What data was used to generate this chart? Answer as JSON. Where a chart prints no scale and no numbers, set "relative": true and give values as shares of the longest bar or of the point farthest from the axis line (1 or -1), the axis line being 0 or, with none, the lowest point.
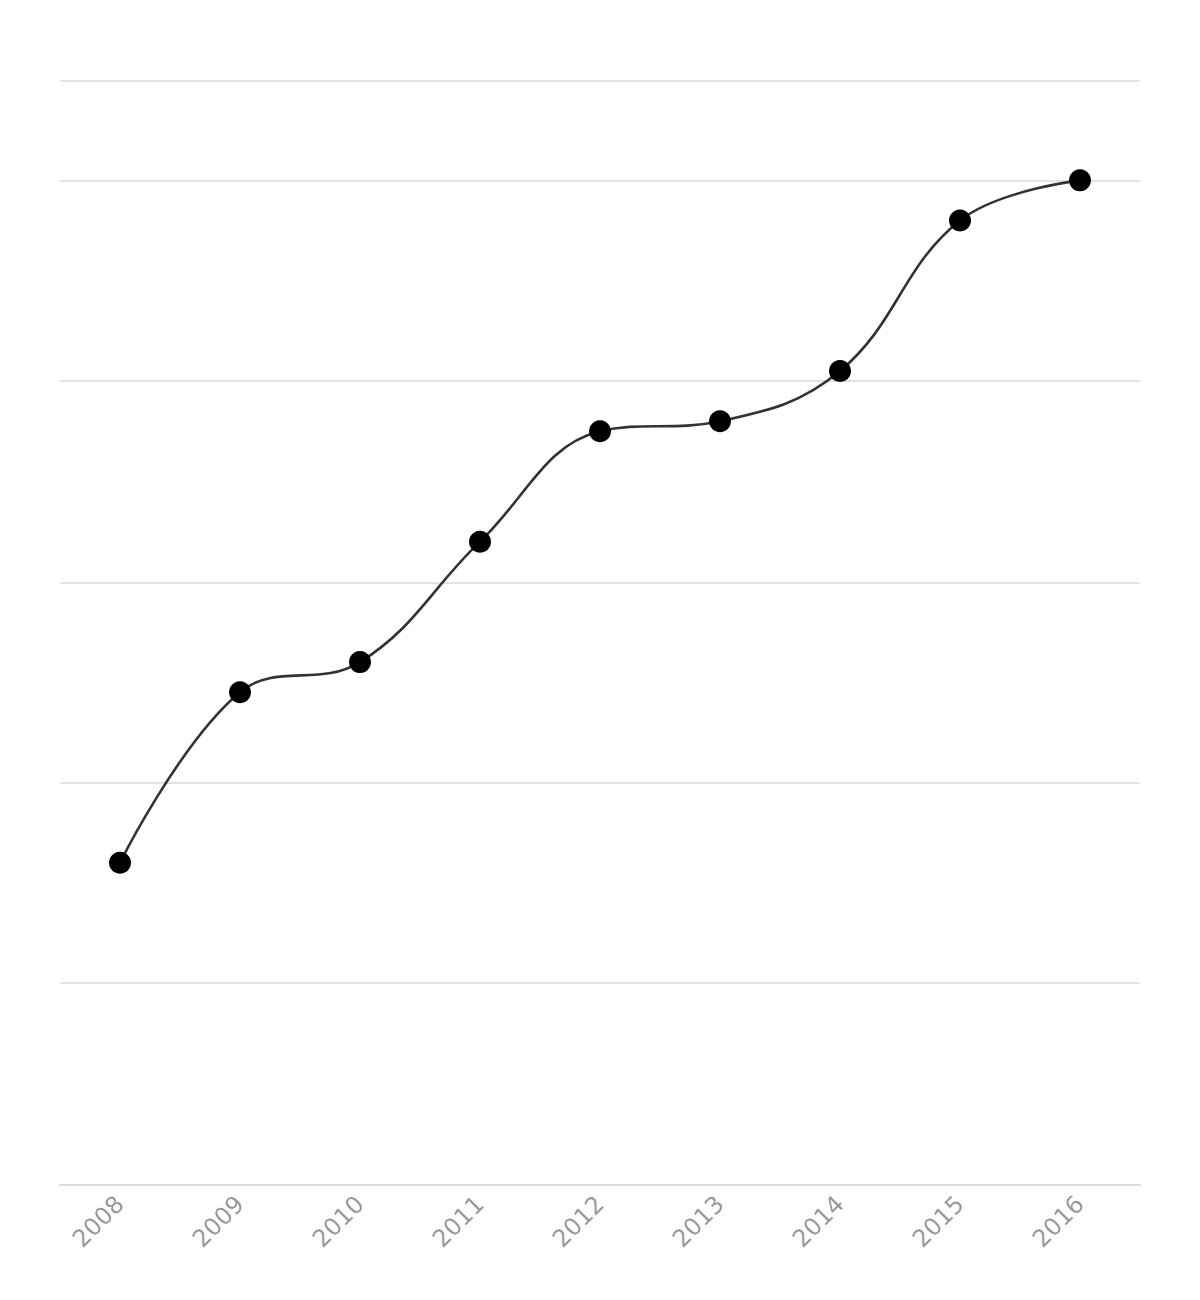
{
  "chart_data": {
    "type": "line",
    "relative": true,
    "categories": [
      "2008",
      "2009",
      "2010",
      "2011",
      "2012",
      "2013",
      "2014",
      "2015",
      "2016"
    ],
    "series": [
      {
        "color": "#333333",
        "values": [
          0.32,
          0.49,
          0.52,
          0.64,
          0.75,
          0.76,
          0.81,
          0.96,
          1
        ]
      }
    ],
    "marker": "circle",
    "line_style": "solid",
    "grid": true
  }
}
